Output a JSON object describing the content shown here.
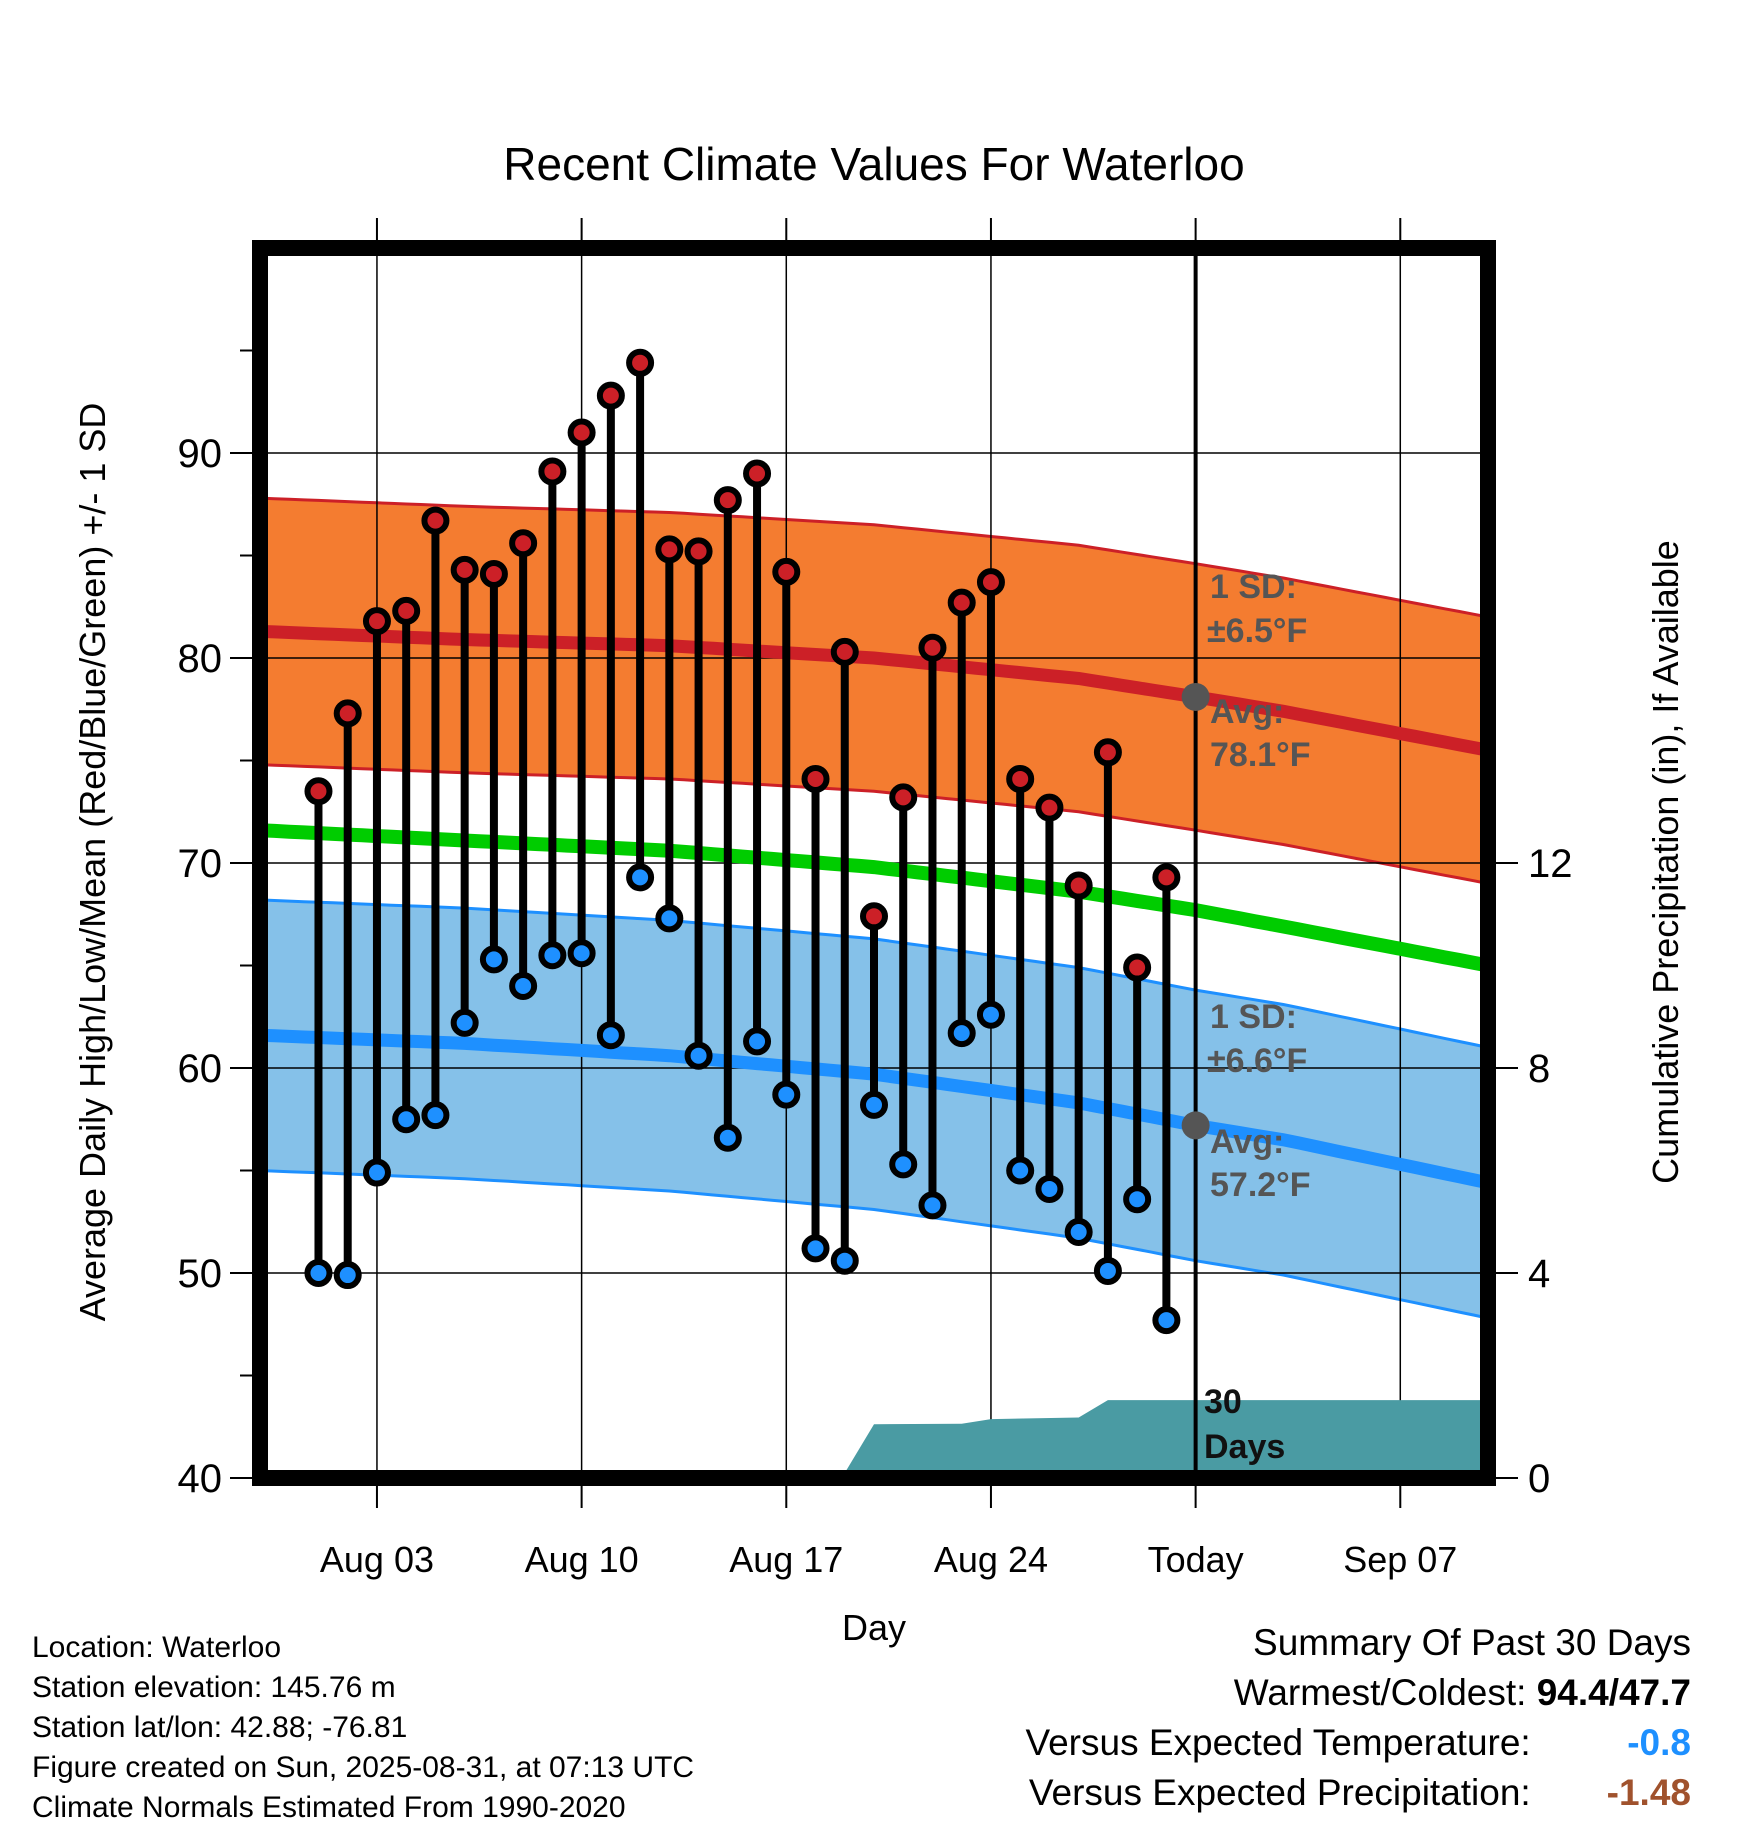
{
  "chart_data": {
    "type": "line",
    "title": "Recent Climate Values For Waterloo",
    "xlabel": "Day",
    "ylabel": "Average Daily High/Low/Mean (Red/Blue/Green) +/- 1 SD",
    "y2label": "Cumulative Precipitation (in), If Available",
    "ylim": [
      40,
      100
    ],
    "y2lim": [
      0,
      24
    ],
    "xlim": [
      "2025-07-30",
      "2025-09-10"
    ],
    "grid": true,
    "yticks": [
      40,
      50,
      60,
      70,
      80,
      90
    ],
    "y2ticks": [
      0,
      4,
      8,
      12
    ],
    "xticks": [
      {
        "date": "2025-08-03",
        "label": "Aug 03"
      },
      {
        "date": "2025-08-10",
        "label": "Aug 10"
      },
      {
        "date": "2025-08-17",
        "label": "Aug 17"
      },
      {
        "date": "2025-08-24",
        "label": "Aug 24"
      },
      {
        "date": "2025-08-31",
        "label": "Today"
      },
      {
        "date": "2025-09-07",
        "label": "Sep 07"
      }
    ],
    "today": "2025-08-31",
    "observed": {
      "dates": [
        "2025-08-01",
        "2025-08-02",
        "2025-08-03",
        "2025-08-04",
        "2025-08-05",
        "2025-08-06",
        "2025-08-07",
        "2025-08-08",
        "2025-08-09",
        "2025-08-10",
        "2025-08-11",
        "2025-08-12",
        "2025-08-13",
        "2025-08-14",
        "2025-08-15",
        "2025-08-16",
        "2025-08-17",
        "2025-08-18",
        "2025-08-19",
        "2025-08-20",
        "2025-08-21",
        "2025-08-22",
        "2025-08-23",
        "2025-08-24",
        "2025-08-25",
        "2025-08-26",
        "2025-08-27",
        "2025-08-28",
        "2025-08-29",
        "2025-08-30"
      ],
      "highs": [
        73.5,
        77.3,
        81.8,
        82.3,
        86.7,
        84.3,
        84.1,
        85.6,
        89.1,
        91.0,
        92.8,
        94.4,
        85.3,
        85.2,
        87.7,
        89.0,
        84.2,
        74.1,
        80.3,
        67.4,
        73.2,
        80.5,
        82.7,
        83.7,
        74.1,
        72.7,
        68.9,
        75.4,
        64.9,
        69.3
      ],
      "lows": [
        50.0,
        49.9,
        54.9,
        57.5,
        57.7,
        62.2,
        65.3,
        64.0,
        65.5,
        65.6,
        61.6,
        69.3,
        67.3,
        60.6,
        56.6,
        61.3,
        58.7,
        51.2,
        50.6,
        58.2,
        55.3,
        53.3,
        61.7,
        62.6,
        55.0,
        54.1,
        52.0,
        50.1,
        53.6,
        47.7
      ]
    },
    "normals": {
      "dates": [
        "2025-07-30",
        "2025-08-06",
        "2025-08-13",
        "2025-08-20",
        "2025-08-27",
        "2025-08-31",
        "2025-09-03",
        "2025-09-10"
      ],
      "avg_high": [
        81.3,
        80.9,
        80.6,
        80.0,
        79.0,
        78.1,
        77.4,
        75.5
      ],
      "avg_low": [
        61.6,
        61.2,
        60.6,
        59.7,
        58.3,
        57.2,
        56.5,
        54.4
      ],
      "mean": [
        71.6,
        71.1,
        70.6,
        69.8,
        68.6,
        67.7,
        66.9,
        65.0
      ],
      "high_sd": 6.5,
      "low_sd": 6.6
    },
    "precip": {
      "dates": [
        "2025-08-17",
        "2025-08-19",
        "2025-08-20",
        "2025-08-23",
        "2025-08-24",
        "2025-08-27",
        "2025-08-28",
        "2025-09-10"
      ],
      "cumulative": [
        0.03,
        0.1,
        1.05,
        1.06,
        1.15,
        1.18,
        1.52,
        1.52
      ]
    },
    "colors": {
      "high": "#cc2027",
      "high_band": "#f47c30",
      "low": "#1e90ff",
      "low_band": "#85c1e9",
      "mean": "#00cc00",
      "precip": "#4a9ba3",
      "annotation": "#555555"
    }
  },
  "annotations": {
    "high_sd_label": "1 SD:",
    "high_sd_value": "±6.5°F",
    "high_avg_label": "Avg:",
    "high_avg_value": "78.1°F",
    "low_sd_label": "1 SD:",
    "low_sd_value": "±6.6°F",
    "low_avg_label": "Avg:",
    "low_avg_value": "57.2°F",
    "precip_label_1": "30",
    "precip_label_2": "Days"
  },
  "info": {
    "location": "Location: Waterloo",
    "elevation": "Station elevation: 145.76 m",
    "latlon": "Station lat/lon: 42.88; -76.81",
    "created": "Figure created on Sun, 2025-08-31, at 07:13 UTC",
    "normals": "Climate Normals Estimated From 1990-2020"
  },
  "summary": {
    "title": "Summary Of Past 30 Days",
    "warm_cold_label": "Warmest/Coldest:",
    "warm_cold_value": "94.4/47.7",
    "temp_label": "Versus Expected Temperature:",
    "temp_value": "-0.8",
    "temp_color": "#1e90ff",
    "precip_label": "Versus Expected Precipitation:",
    "precip_value": "-1.48",
    "precip_color": "#a0522d"
  }
}
